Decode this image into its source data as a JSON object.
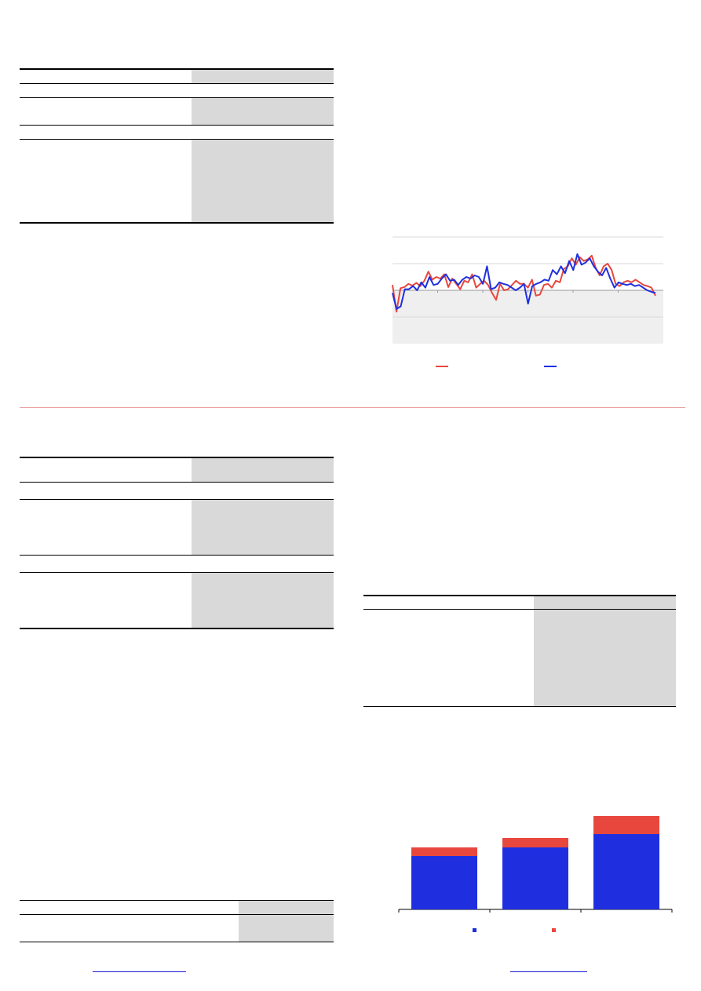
{
  "colors": {
    "table_shade": "#d9d9d9",
    "series_red": "#e8473e",
    "series_blue": "#1f2fe0",
    "divider": "#e8a0a0",
    "link": "#1a1ad6",
    "chart_negative_band": "#efefef"
  },
  "chart_data": [
    {
      "type": "line",
      "y_zero_line": true,
      "shaded_negative_region": true,
      "grid": true,
      "legend_position": "bottom",
      "series": [
        {
          "color": "#e8473e",
          "values": [
            10,
            -40,
            4,
            6,
            12,
            9,
            14,
            8,
            18,
            35,
            20,
            25,
            22,
            30,
            6,
            22,
            12,
            2,
            18,
            15,
            30,
            5,
            12,
            18,
            10,
            -5,
            -18,
            12,
            0,
            2,
            10,
            18,
            12,
            12,
            5,
            20,
            -10,
            -8,
            10,
            12,
            5,
            18,
            15,
            40,
            45,
            60,
            48,
            62,
            55,
            58,
            65,
            42,
            28,
            45,
            50,
            38,
            12,
            8,
            15,
            18,
            15,
            20,
            15,
            10,
            8,
            5,
            -10
          ]
        },
        {
          "color": "#1f2fe0",
          "values": [
            -5,
            -35,
            -30,
            2,
            2,
            8,
            0,
            15,
            5,
            25,
            10,
            12,
            22,
            30,
            18,
            20,
            10,
            20,
            25,
            22,
            28,
            25,
            12,
            45,
            2,
            5,
            15,
            12,
            10,
            5,
            0,
            5,
            12,
            -25,
            8,
            12,
            15,
            20,
            18,
            38,
            30,
            45,
            32,
            55,
            38,
            68,
            48,
            52,
            60,
            45,
            35,
            28,
            42,
            22,
            5,
            15,
            12,
            10,
            12,
            8,
            10,
            5,
            0,
            -3,
            -5
          ]
        }
      ]
    },
    {
      "type": "bar",
      "stacked": true,
      "categories": [
        "",
        "",
        ""
      ],
      "series": [
        {
          "color": "#1f2fe0",
          "values": [
            68,
            79,
            96
          ]
        },
        {
          "color": "#e8473e",
          "values": [
            11,
            12,
            23
          ]
        }
      ]
    }
  ]
}
